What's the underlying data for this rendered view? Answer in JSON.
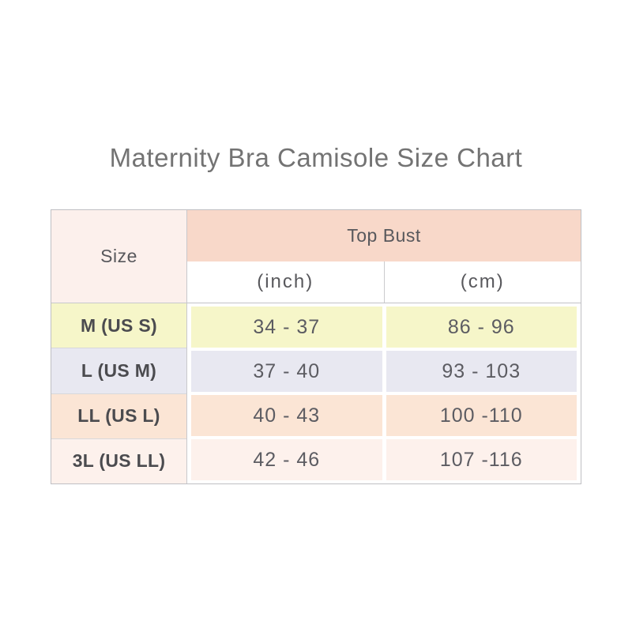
{
  "title": "Maternity Bra Camisole Size Chart",
  "table": {
    "size_header": "Size",
    "group_header": "Top Bust",
    "unit_inch": "(inch)",
    "unit_cm": "(cm)",
    "rows": [
      {
        "size": "M (US S)",
        "inch": "34 - 37",
        "cm": "86 - 96",
        "row_color": "#f6f6c9"
      },
      {
        "size": "L (US M)",
        "inch": "37 - 40",
        "cm": "93 - 103",
        "row_color": "#e8e8f1"
      },
      {
        "size": "LL (US L)",
        "inch": "40 - 43",
        "cm": "100 -110",
        "row_color": "#fbe5d5"
      },
      {
        "size": "3L (US LL)",
        "inch": "42 - 46",
        "cm": "107 -116",
        "row_color": "#fdf1ec"
      }
    ],
    "colors": {
      "group_header_fill": "#f8d8c9",
      "size_header_fill": "#fcf0ec",
      "units_fill": "#ffffff",
      "outer_border": "#bfbfc3",
      "inner_border": "#c8c8cc",
      "title_text": "#737373",
      "header_text": "#58585c",
      "label_text": "#4b4b4f",
      "value_text": "#5c5c62"
    }
  },
  "chart_data": {
    "type": "table",
    "title": "Maternity Bra Camisole Size Chart",
    "columns": [
      "Size",
      "Top Bust (inch)",
      "Top Bust (cm)"
    ],
    "rows": [
      [
        "M (US S)",
        "34 - 37",
        "86 - 96"
      ],
      [
        "L (US M)",
        "37 - 40",
        "93 - 103"
      ],
      [
        "LL (US L)",
        "40 - 43",
        "100 -110"
      ],
      [
        "3L (US LL)",
        "42 - 46",
        "107 -116"
      ]
    ]
  }
}
